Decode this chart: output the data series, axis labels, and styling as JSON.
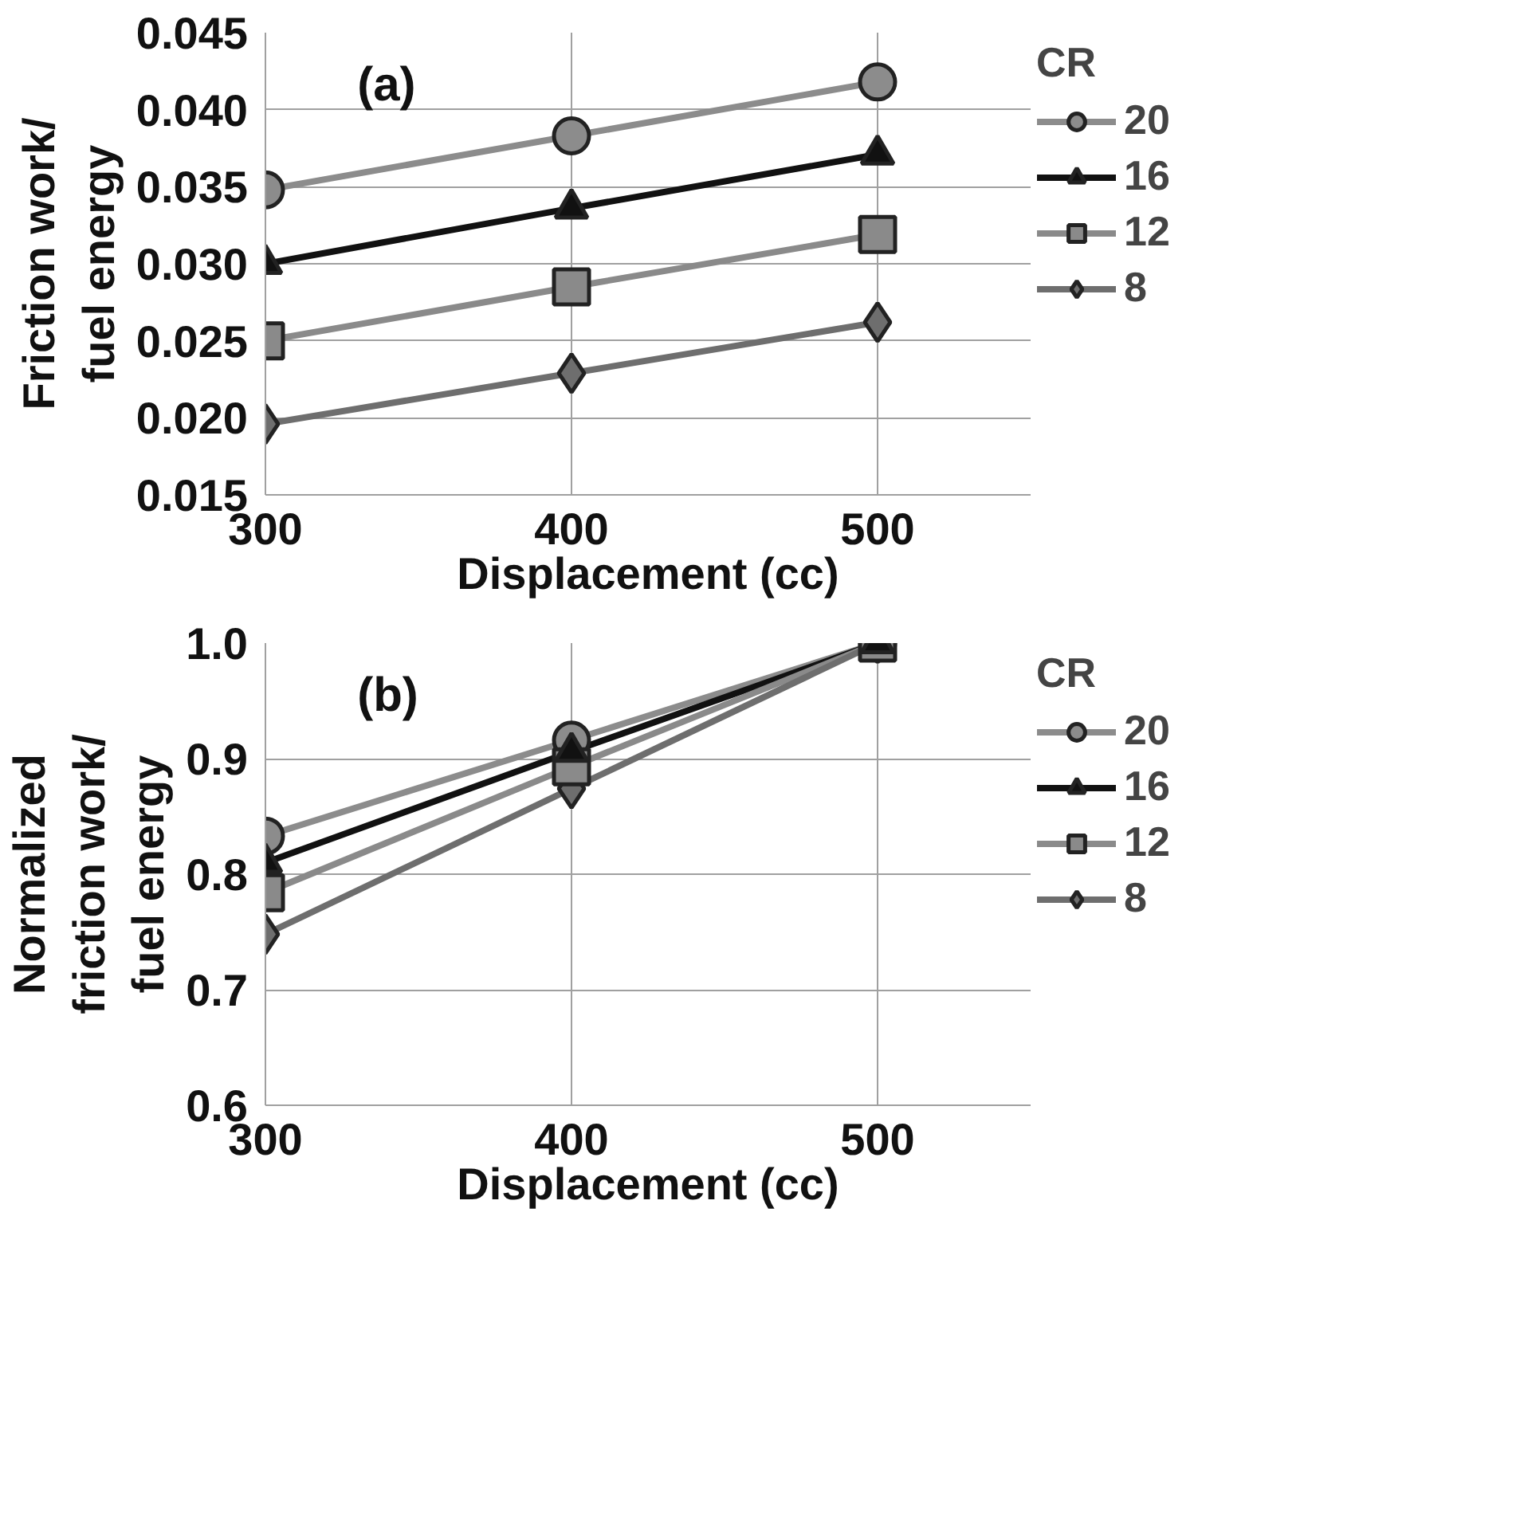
{
  "chart_data": [
    {
      "type": "line",
      "xlabel": "Displacement (cc)",
      "ylabel": "Friction work/\nfuel energy",
      "legend_title": "CR",
      "annotations": [
        "(a)"
      ],
      "x": [
        300,
        400,
        500
      ],
      "xlim": [
        300,
        550
      ],
      "xticks": [
        300,
        400,
        500
      ],
      "ylim": [
        0.015,
        0.045
      ],
      "yticks": [
        {
          "value": 0.015,
          "label": "0.015"
        },
        {
          "value": 0.02,
          "label": "0.020"
        },
        {
          "value": 0.025,
          "label": "0.025"
        },
        {
          "value": 0.03,
          "label": "0.030"
        },
        {
          "value": 0.035,
          "label": "0.035"
        },
        {
          "value": 0.04,
          "label": "0.040"
        },
        {
          "value": 0.045,
          "label": "0.045"
        }
      ],
      "grid": true,
      "legend": "right",
      "series": [
        {
          "name": "20",
          "color": "#8c8c8c",
          "marker": "circle",
          "values": [
            0.0348,
            0.0383,
            0.0418
          ]
        },
        {
          "name": "16",
          "color": "#111111",
          "marker": "triangle",
          "values": [
            0.03,
            0.0336,
            0.0371
          ]
        },
        {
          "name": "12",
          "color": "#8a8a8a",
          "marker": "square",
          "values": [
            0.025,
            0.0285,
            0.0319
          ]
        },
        {
          "name": "8",
          "color": "#6e6e6e",
          "marker": "diamond",
          "values": [
            0.0196,
            0.0229,
            0.0262
          ]
        }
      ]
    },
    {
      "type": "line",
      "xlabel": "Displacement (cc)",
      "ylabel": "Normalized\nfriction work/\nfuel energy",
      "legend_title": "CR",
      "annotations": [
        "(b)"
      ],
      "x": [
        300,
        400,
        500
      ],
      "xlim": [
        300,
        550
      ],
      "xticks": [
        300,
        400,
        500
      ],
      "ylim": [
        0.6,
        1.0
      ],
      "yticks": [
        {
          "value": 0.6,
          "label": "0.6"
        },
        {
          "value": 0.7,
          "label": "0.7"
        },
        {
          "value": 0.8,
          "label": "0.8"
        },
        {
          "value": 0.9,
          "label": "0.9"
        },
        {
          "value": 1.0,
          "label": "1.0"
        }
      ],
      "grid": true,
      "legend": "right",
      "series": [
        {
          "name": "20",
          "color": "#8c8c8c",
          "marker": "circle",
          "values": [
            0.833,
            0.916,
            1.0
          ]
        },
        {
          "name": "16",
          "color": "#111111",
          "marker": "triangle",
          "values": [
            0.81,
            0.906,
            1.0
          ]
        },
        {
          "name": "12",
          "color": "#8a8a8a",
          "marker": "square",
          "values": [
            0.784,
            0.893,
            1.0
          ]
        },
        {
          "name": "8",
          "color": "#6e6e6e",
          "marker": "diamond",
          "values": [
            0.748,
            0.874,
            1.0
          ]
        }
      ]
    }
  ]
}
